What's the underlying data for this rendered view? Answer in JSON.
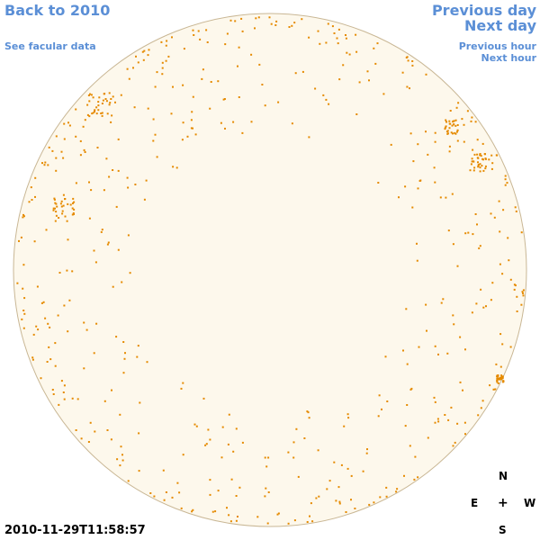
{
  "nav": {
    "back": "Back to 2010",
    "facular": "See facular data",
    "previous_day": "Previous day",
    "next_day": "Next day",
    "previous_hour": "Previous hour",
    "next_hour": "Next hour"
  },
  "timestamp": "2010-11-29T11:58:57",
  "compass": {
    "north": "N",
    "east": "E",
    "center": "+",
    "west": "W",
    "south": "S"
  }
}
